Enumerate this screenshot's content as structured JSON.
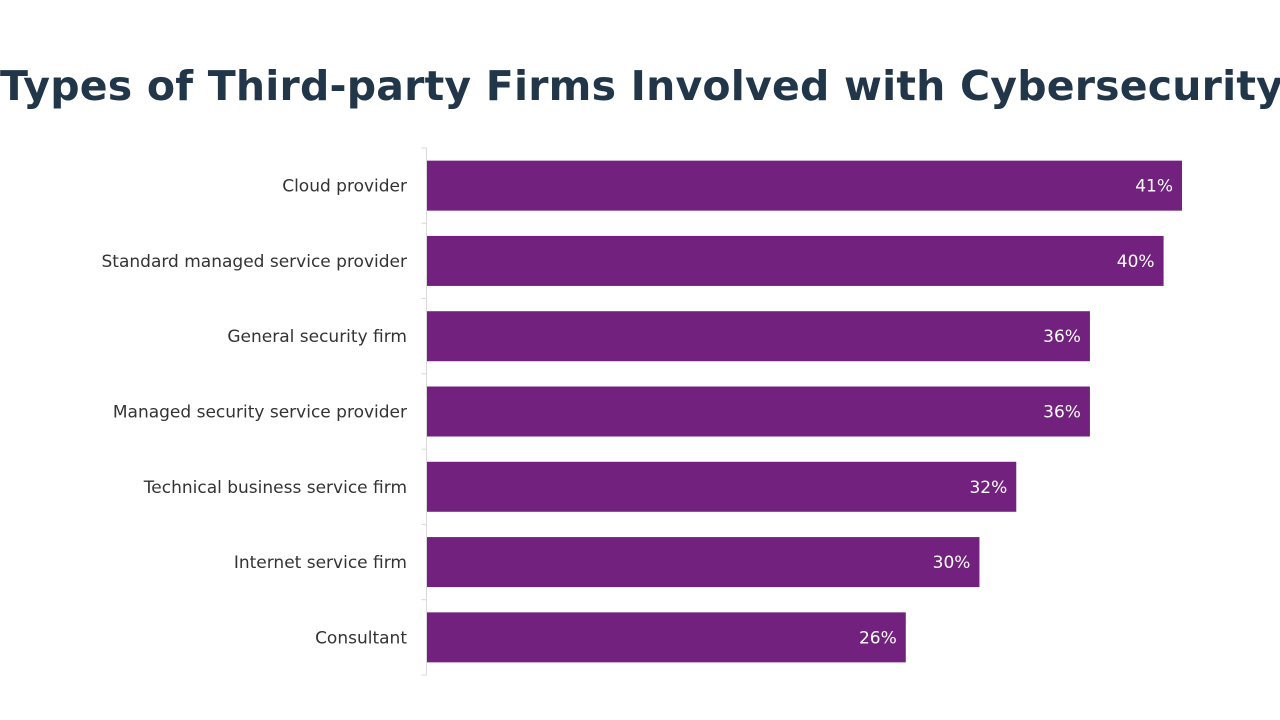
{
  "title": "Types of Third-party Firms Involved with Cybersecurity",
  "colors": {
    "bar": "#72217f",
    "title": "#22364a",
    "axis": "#d9d9d9",
    "label": "#333333",
    "value_label": "#ffffff"
  },
  "chart_data": {
    "type": "bar",
    "orientation": "horizontal",
    "title": "Types of Third-party Firms Involved with Cybersecurity",
    "xlabel": "",
    "ylabel": "",
    "unit": "%",
    "categories": [
      "Cloud provider",
      "Standard managed service provider",
      "General security firm",
      "Managed security service provider",
      "Technical business service firm",
      "Internet service firm",
      "Consultant"
    ],
    "values": [
      41,
      40,
      36,
      36,
      32,
      30,
      26
    ],
    "data_labels": [
      "41%",
      "40%",
      "36%",
      "36%",
      "32%",
      "30%",
      "26%"
    ],
    "grid": false,
    "legend": "none"
  }
}
